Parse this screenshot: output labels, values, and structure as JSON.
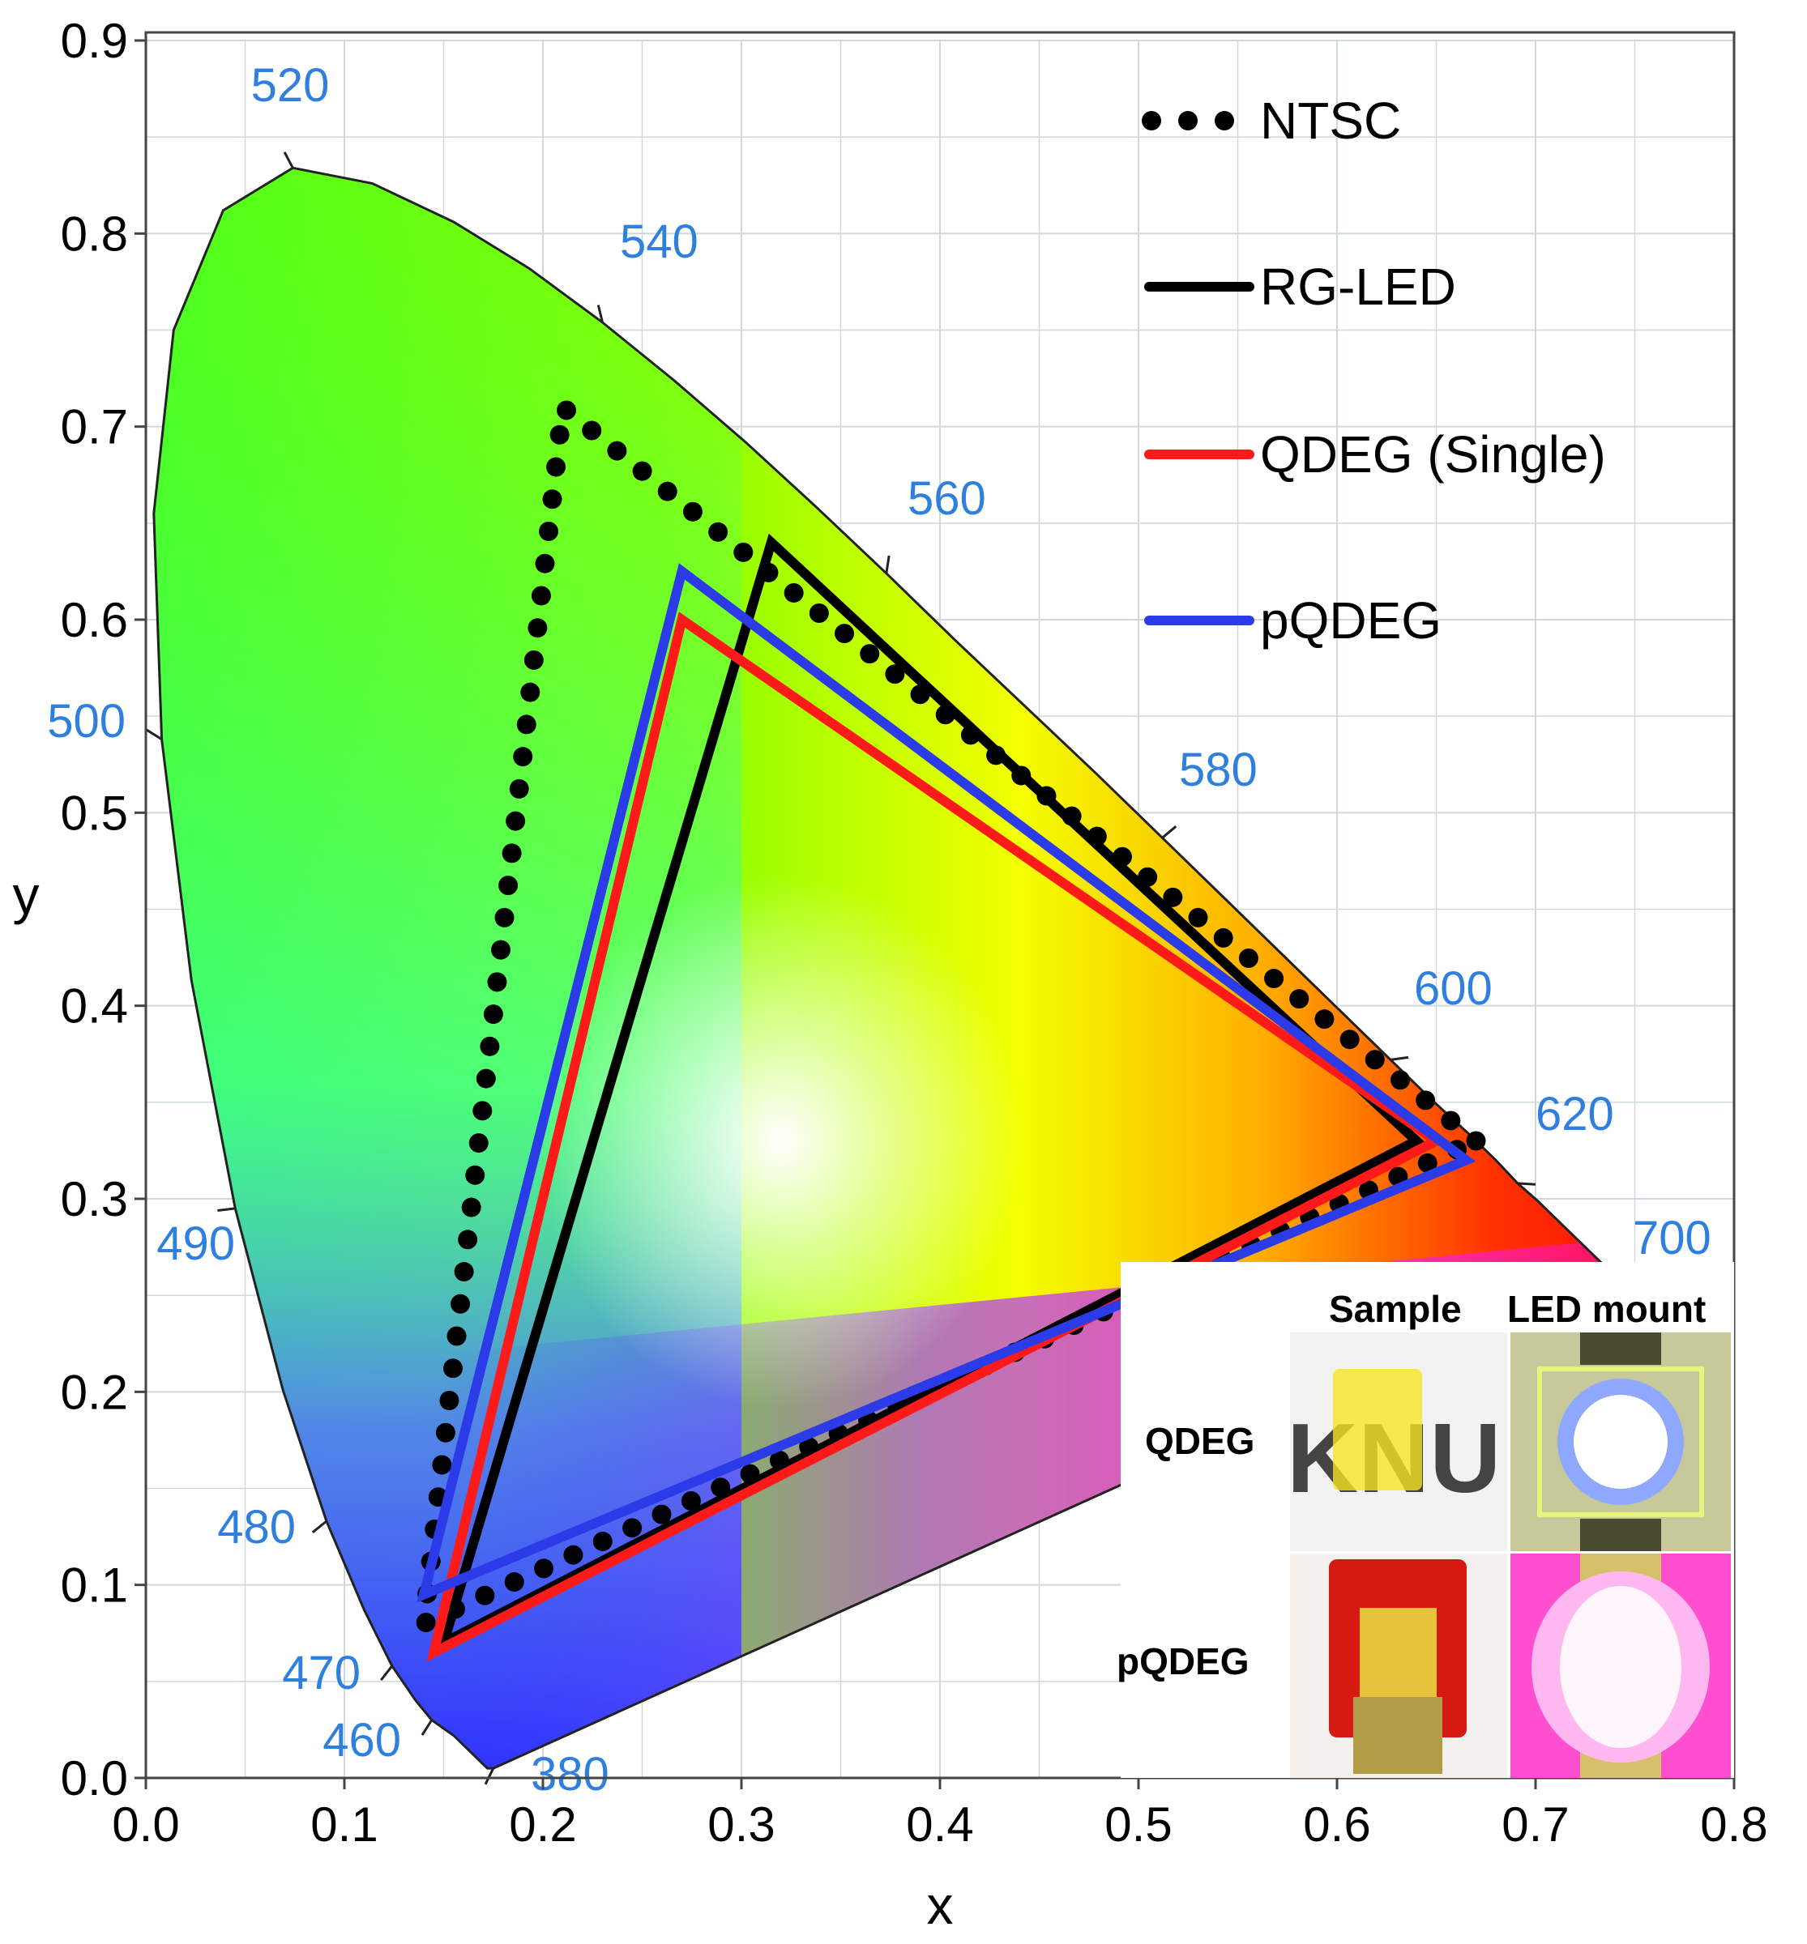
{
  "chart_data": {
    "type": "scatter",
    "xlabel": "x",
    "ylabel": "y",
    "xlim": [
      0.0,
      0.8
    ],
    "ylim": [
      0.0,
      0.9
    ],
    "xticks": [
      "0.0",
      "0.1",
      "0.2",
      "0.3",
      "0.4",
      "0.5",
      "0.6",
      "0.7",
      "0.8"
    ],
    "yticks": [
      "0.0",
      "0.1",
      "0.2",
      "0.3",
      "0.4",
      "0.5",
      "0.6",
      "0.7",
      "0.8",
      "0.9"
    ],
    "grid": true,
    "legend_position": "top-right",
    "spectral_locus_labels": [
      {
        "label": "380",
        "x": 0.175,
        "y": 0.005
      },
      {
        "label": "460",
        "x": 0.144,
        "y": 0.03
      },
      {
        "label": "470",
        "x": 0.124,
        "y": 0.058
      },
      {
        "label": "480",
        "x": 0.091,
        "y": 0.133
      },
      {
        "label": "490",
        "x": 0.045,
        "y": 0.295
      },
      {
        "label": "500",
        "x": 0.008,
        "y": 0.538
      },
      {
        "label": "520",
        "x": 0.074,
        "y": 0.834
      },
      {
        "label": "540",
        "x": 0.23,
        "y": 0.754
      },
      {
        "label": "560",
        "x": 0.373,
        "y": 0.624
      },
      {
        "label": "580",
        "x": 0.512,
        "y": 0.487
      },
      {
        "label": "600",
        "x": 0.627,
        "y": 0.372
      },
      {
        "label": "620",
        "x": 0.691,
        "y": 0.308
      },
      {
        "label": "700",
        "x": 0.735,
        "y": 0.265
      }
    ],
    "series": [
      {
        "name": "NTSC",
        "style": "dotted",
        "color": "#000000",
        "points": [
          [
            0.67,
            0.33
          ],
          [
            0.21,
            0.71
          ],
          [
            0.14,
            0.08
          ]
        ]
      },
      {
        "name": "RG-LED",
        "style": "solid",
        "color": "#000000",
        "points": [
          [
            0.315,
            0.64
          ],
          [
            0.64,
            0.33
          ],
          [
            0.15,
            0.07
          ]
        ]
      },
      {
        "name": "QDEG (Single)",
        "style": "solid",
        "color": "#ff1a1a",
        "points": [
          [
            0.27,
            0.6
          ],
          [
            0.65,
            0.33
          ],
          [
            0.145,
            0.065
          ]
        ]
      },
      {
        "name": "pQDEG",
        "style": "solid",
        "color": "#2b3be8",
        "points": [
          [
            0.27,
            0.625
          ],
          [
            0.665,
            0.32
          ],
          [
            0.14,
            0.095
          ]
        ]
      }
    ]
  },
  "legend": [
    {
      "label": "NTSC"
    },
    {
      "label": "RG-LED"
    },
    {
      "label": "QDEG (Single)"
    },
    {
      "label": "pQDEG"
    }
  ],
  "inset": {
    "col_sample": "Sample",
    "col_led": "LED mount",
    "row_qdeg": "QDEG",
    "row_pqdeg": "pQDEG",
    "sample_text": "KNU"
  }
}
